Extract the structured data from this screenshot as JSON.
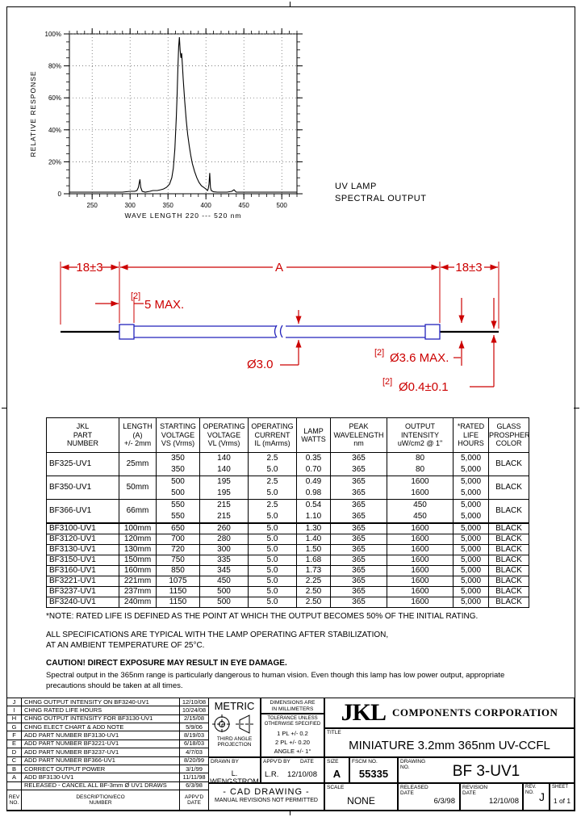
{
  "annotation": {
    "line1": "UV LAMP",
    "line2": "SPECTRAL OUTPUT"
  },
  "chart_data": {
    "type": "line",
    "title": "UV LAMP SPECTRAL OUTPUT",
    "xlabel": "WAVE LENGTH 220 --- 520 nm",
    "ylabel": "RELATIVE  RESPONSE",
    "xlim": [
      220,
      520
    ],
    "ylim": [
      0,
      100
    ],
    "x_major_ticks": [
      250,
      300,
      350,
      400,
      450,
      500
    ],
    "x_minor_step": 10,
    "y_major_ticks": [
      0,
      20,
      40,
      60,
      80,
      100
    ],
    "y_tick_labels": [
      "0",
      "20%",
      "40%",
      "60%",
      "80%",
      "100%"
    ],
    "y_minor_step": 5,
    "grid": "dotted",
    "legend": "none",
    "peak_wavelength_nm": 365,
    "points": [
      [
        220,
        1
      ],
      [
        230,
        1
      ],
      [
        240,
        1
      ],
      [
        250,
        1
      ],
      [
        260,
        1
      ],
      [
        270,
        1
      ],
      [
        280,
        1
      ],
      [
        290,
        1
      ],
      [
        300,
        1.5
      ],
      [
        306,
        1.5
      ],
      [
        309,
        2
      ],
      [
        311,
        4
      ],
      [
        313,
        9
      ],
      [
        314,
        4
      ],
      [
        316,
        1.5
      ],
      [
        320,
        1
      ],
      [
        326,
        1.5
      ],
      [
        330,
        2
      ],
      [
        336,
        2
      ],
      [
        340,
        2.5
      ],
      [
        344,
        3
      ],
      [
        348,
        4
      ],
      [
        352,
        6
      ],
      [
        355,
        10
      ],
      [
        357,
        16
      ],
      [
        359,
        28
      ],
      [
        361,
        48
      ],
      [
        362,
        62
      ],
      [
        363,
        78
      ],
      [
        364,
        92
      ],
      [
        365,
        98
      ],
      [
        366,
        90
      ],
      [
        367,
        85
      ],
      [
        368,
        88
      ],
      [
        369,
        80
      ],
      [
        370,
        72
      ],
      [
        372,
        58
      ],
      [
        374,
        46
      ],
      [
        376,
        37
      ],
      [
        378,
        30
      ],
      [
        380,
        24
      ],
      [
        382,
        19
      ],
      [
        385,
        14
      ],
      [
        388,
        10
      ],
      [
        391,
        7
      ],
      [
        394,
        5
      ],
      [
        397,
        4
      ],
      [
        400,
        3
      ],
      [
        402,
        2
      ],
      [
        403,
        3
      ],
      [
        404,
        6
      ],
      [
        405,
        13
      ],
      [
        406,
        4
      ],
      [
        407,
        2
      ],
      [
        410,
        1.2
      ],
      [
        415,
        1
      ],
      [
        420,
        1
      ],
      [
        428,
        1
      ],
      [
        434,
        1.5
      ],
      [
        437,
        2.5
      ],
      [
        440,
        1
      ],
      [
        450,
        1
      ],
      [
        460,
        1
      ],
      [
        470,
        1
      ],
      [
        480,
        1
      ],
      [
        490,
        1
      ],
      [
        500,
        1
      ],
      [
        510,
        1
      ],
      [
        520,
        1
      ]
    ]
  },
  "drawing": {
    "dim_left": "18±3",
    "dim_a": "A",
    "dim_right": "18±3",
    "ref": "[2]",
    "cap_length": "5 MAX.",
    "glass_dia": "Ø3.0",
    "cap_dia": "Ø3.6 MAX.",
    "lead_dia": "Ø0.4±0.1",
    "colors": {
      "dimension": "#cc0000",
      "glass": "#2222bb",
      "lead": "#000000"
    }
  },
  "spec_table": {
    "headers": [
      "JKL\nPART\nNUMBER",
      "LENGTH\n(A)\n+/- 2mm",
      "STARTING\nVOLTAGE\nVS (Vrms)",
      "OPERATING\nVOLTAGE\nVL (Vrms)",
      "OPERATING\nCURRENT\nIL (mArms)",
      "LAMP\nWATTS",
      "PEAK\nWAVELENGTH\nnm",
      "OUTPUT\nINTENSITY\nuW/cm2 @ 1\"",
      "*RATED\nLIFE\nHOURS",
      "GLASS\nPROSPHER\nCOLOR"
    ],
    "groups": [
      {
        "part": "BF325-UV1",
        "length": "25mm",
        "color": "BLACK",
        "rows": [
          [
            "350",
            "140",
            "2.5",
            "0.35",
            "365",
            "80",
            "5,000"
          ],
          [
            "350",
            "140",
            "5.0",
            "0.70",
            "365",
            "80",
            "5,000"
          ]
        ]
      },
      {
        "part": "BF350-UV1",
        "length": "50mm",
        "color": "BLACK",
        "rows": [
          [
            "500",
            "195",
            "2.5",
            "0.49",
            "365",
            "1600",
            "5,000"
          ],
          [
            "500",
            "195",
            "5.0",
            "0.98",
            "365",
            "1600",
            "5,000"
          ]
        ]
      },
      {
        "part": "BF366-UV1",
        "length": "66mm",
        "color": "BLACK",
        "rows": [
          [
            "550",
            "215",
            "2.5",
            "0.54",
            "365",
            "450",
            "5,000"
          ],
          [
            "550",
            "215",
            "5.0",
            "1.10",
            "365",
            "450",
            "5,000"
          ]
        ]
      }
    ],
    "rows": [
      [
        "BF3100-UV1",
        "100mm",
        "650",
        "260",
        "5.0",
        "1.30",
        "365",
        "1600",
        "5,000",
        "BLACK"
      ],
      [
        "BF3120-UV1",
        "120mm",
        "700",
        "280",
        "5.0",
        "1.40",
        "365",
        "1600",
        "5,000",
        "BLACK"
      ],
      [
        "BF3130-UV1",
        "130mm",
        "720",
        "300",
        "5.0",
        "1.50",
        "365",
        "1600",
        "5,000",
        "BLACK"
      ],
      [
        "BF3150-UV1",
        "150mm",
        "750",
        "335",
        "5.0",
        "1.68",
        "365",
        "1600",
        "5,000",
        "BLACK"
      ],
      [
        "BF3160-UV1",
        "160mm",
        "850",
        "345",
        "5.0",
        "1.73",
        "365",
        "1600",
        "5,000",
        "BLACK"
      ],
      [
        "BF3221-UV1",
        "221mm",
        "1075",
        "450",
        "5.0",
        "2.25",
        "365",
        "1600",
        "5,000",
        "BLACK"
      ],
      [
        "BF3237-UV1",
        "237mm",
        "1150",
        "500",
        "5.0",
        "2.50",
        "365",
        "1600",
        "5,000",
        "BLACK"
      ],
      [
        "BF3240-UV1",
        "240mm",
        "1150",
        "500",
        "5.0",
        "2.50",
        "365",
        "1600",
        "5,000",
        "BLACK"
      ]
    ]
  },
  "notes": {
    "note1": "*NOTE:  RATED LIFE IS DEFINED AS THE POINT AT WHICH THE OUTPUT BECOMES 50% OF THE INITIAL RATING.",
    "note2_line1": "ALL SPECIFICATIONS ARE TYPICAL WITH THE LAMP OPERATING AFTER STABILIZATION,",
    "note2_line2": "AT AN AMBIENT TEMPERATURE OF 25°C.",
    "caution_title": "CAUTION!  DIRECT EXPOSURE MAY RESULT IN EYE DAMAGE.",
    "caution_body": "Spectral output in the 365nm range is particularly dangerous to human vision.  Even though this lamp has low power output, appropriate precautions should be taken at all times."
  },
  "revisions": {
    "rows": [
      [
        "J",
        "CHNG OUTPUT INTENSITY ON BF3240-UV1",
        "12/10/08"
      ],
      [
        "I",
        "CHNG RATED LIFE HOURS",
        "10/24/08"
      ],
      [
        "H",
        "CHNG OUTPUT INTENSITY FOR BF3130-UV1",
        "2/15/08"
      ],
      [
        "G",
        "CHNG ELECT CHART & ADD NOTE",
        "5/9/06"
      ],
      [
        "F",
        "ADD PART NUMBER BF3130-UV1",
        "8/19/03"
      ],
      [
        "E",
        "ADD PART NUMBER BF3221-UV1",
        "6/18/03"
      ],
      [
        "D",
        "ADD PART NUMBER BF3237-UV1",
        "4/7/03"
      ],
      [
        "C",
        "ADD PART NUMBER BF366-UV1",
        "8/20/99"
      ],
      [
        "B",
        "CORRECT OUTPUT POWER",
        "3/1/99"
      ],
      [
        "A",
        "ADD BF3130-UV1",
        "11/11/98"
      ],
      [
        "",
        "RELEASED - CANCEL ALL BF-3mm Ø UV1 DRAWS",
        "6/3/98"
      ]
    ],
    "footer": {
      "rev": "REV\nNO.",
      "desc": "DESCRIPTION/ECO\nNUMBER",
      "date": "APPV'D\nDATE"
    }
  },
  "title_block": {
    "metric": "METRIC",
    "projection": "THIRD ANGLE\nPROJECTION",
    "dims_note": "DIMENSIONS ARE\nIN MILLIMETERS",
    "tol_title": "TOLERANCE UNLESS\nOTHERWISE SPECIFIED",
    "tol_1pl": "1 PL +/- 0.2",
    "tol_2pl": "2 PL +/- 0.20",
    "tol_angle": "ANGLE +/- 1°",
    "drawn_by_label": "DRAWN BY",
    "drawn_by": "L. WENGSTROM",
    "appvd_label": "APPV'D BY",
    "appvd": "L.R.",
    "date_label": "DATE",
    "date": "12/10/08",
    "cad_line1": "- CAD DRAWING -",
    "cad_line2": "MANUAL REVISIONS NOT PERMITTED",
    "size_label": "SIZE",
    "size": "A",
    "fscm_label": "FSCM NO.",
    "fscm": "55335",
    "drawing_label": "DRAWING\nNO.",
    "drawing_no": "BF 3-UV1",
    "scale_label": "SCALE",
    "scale": "NONE",
    "released_label": "RELEASED\nDATE",
    "released": "6/3/98",
    "revision_label": "REVISION\nDATE",
    "revision": "12/10/08",
    "rev_label": "REV.\nNO.",
    "rev": "J",
    "sheet_label": "SHEET",
    "sheet": "1 of 1",
    "logo": "JKL",
    "company": "COMPONENTS CORPORATION",
    "title_label": "TITLE",
    "title": "MINIATURE 3.2mm 365nm UV-CCFL"
  }
}
